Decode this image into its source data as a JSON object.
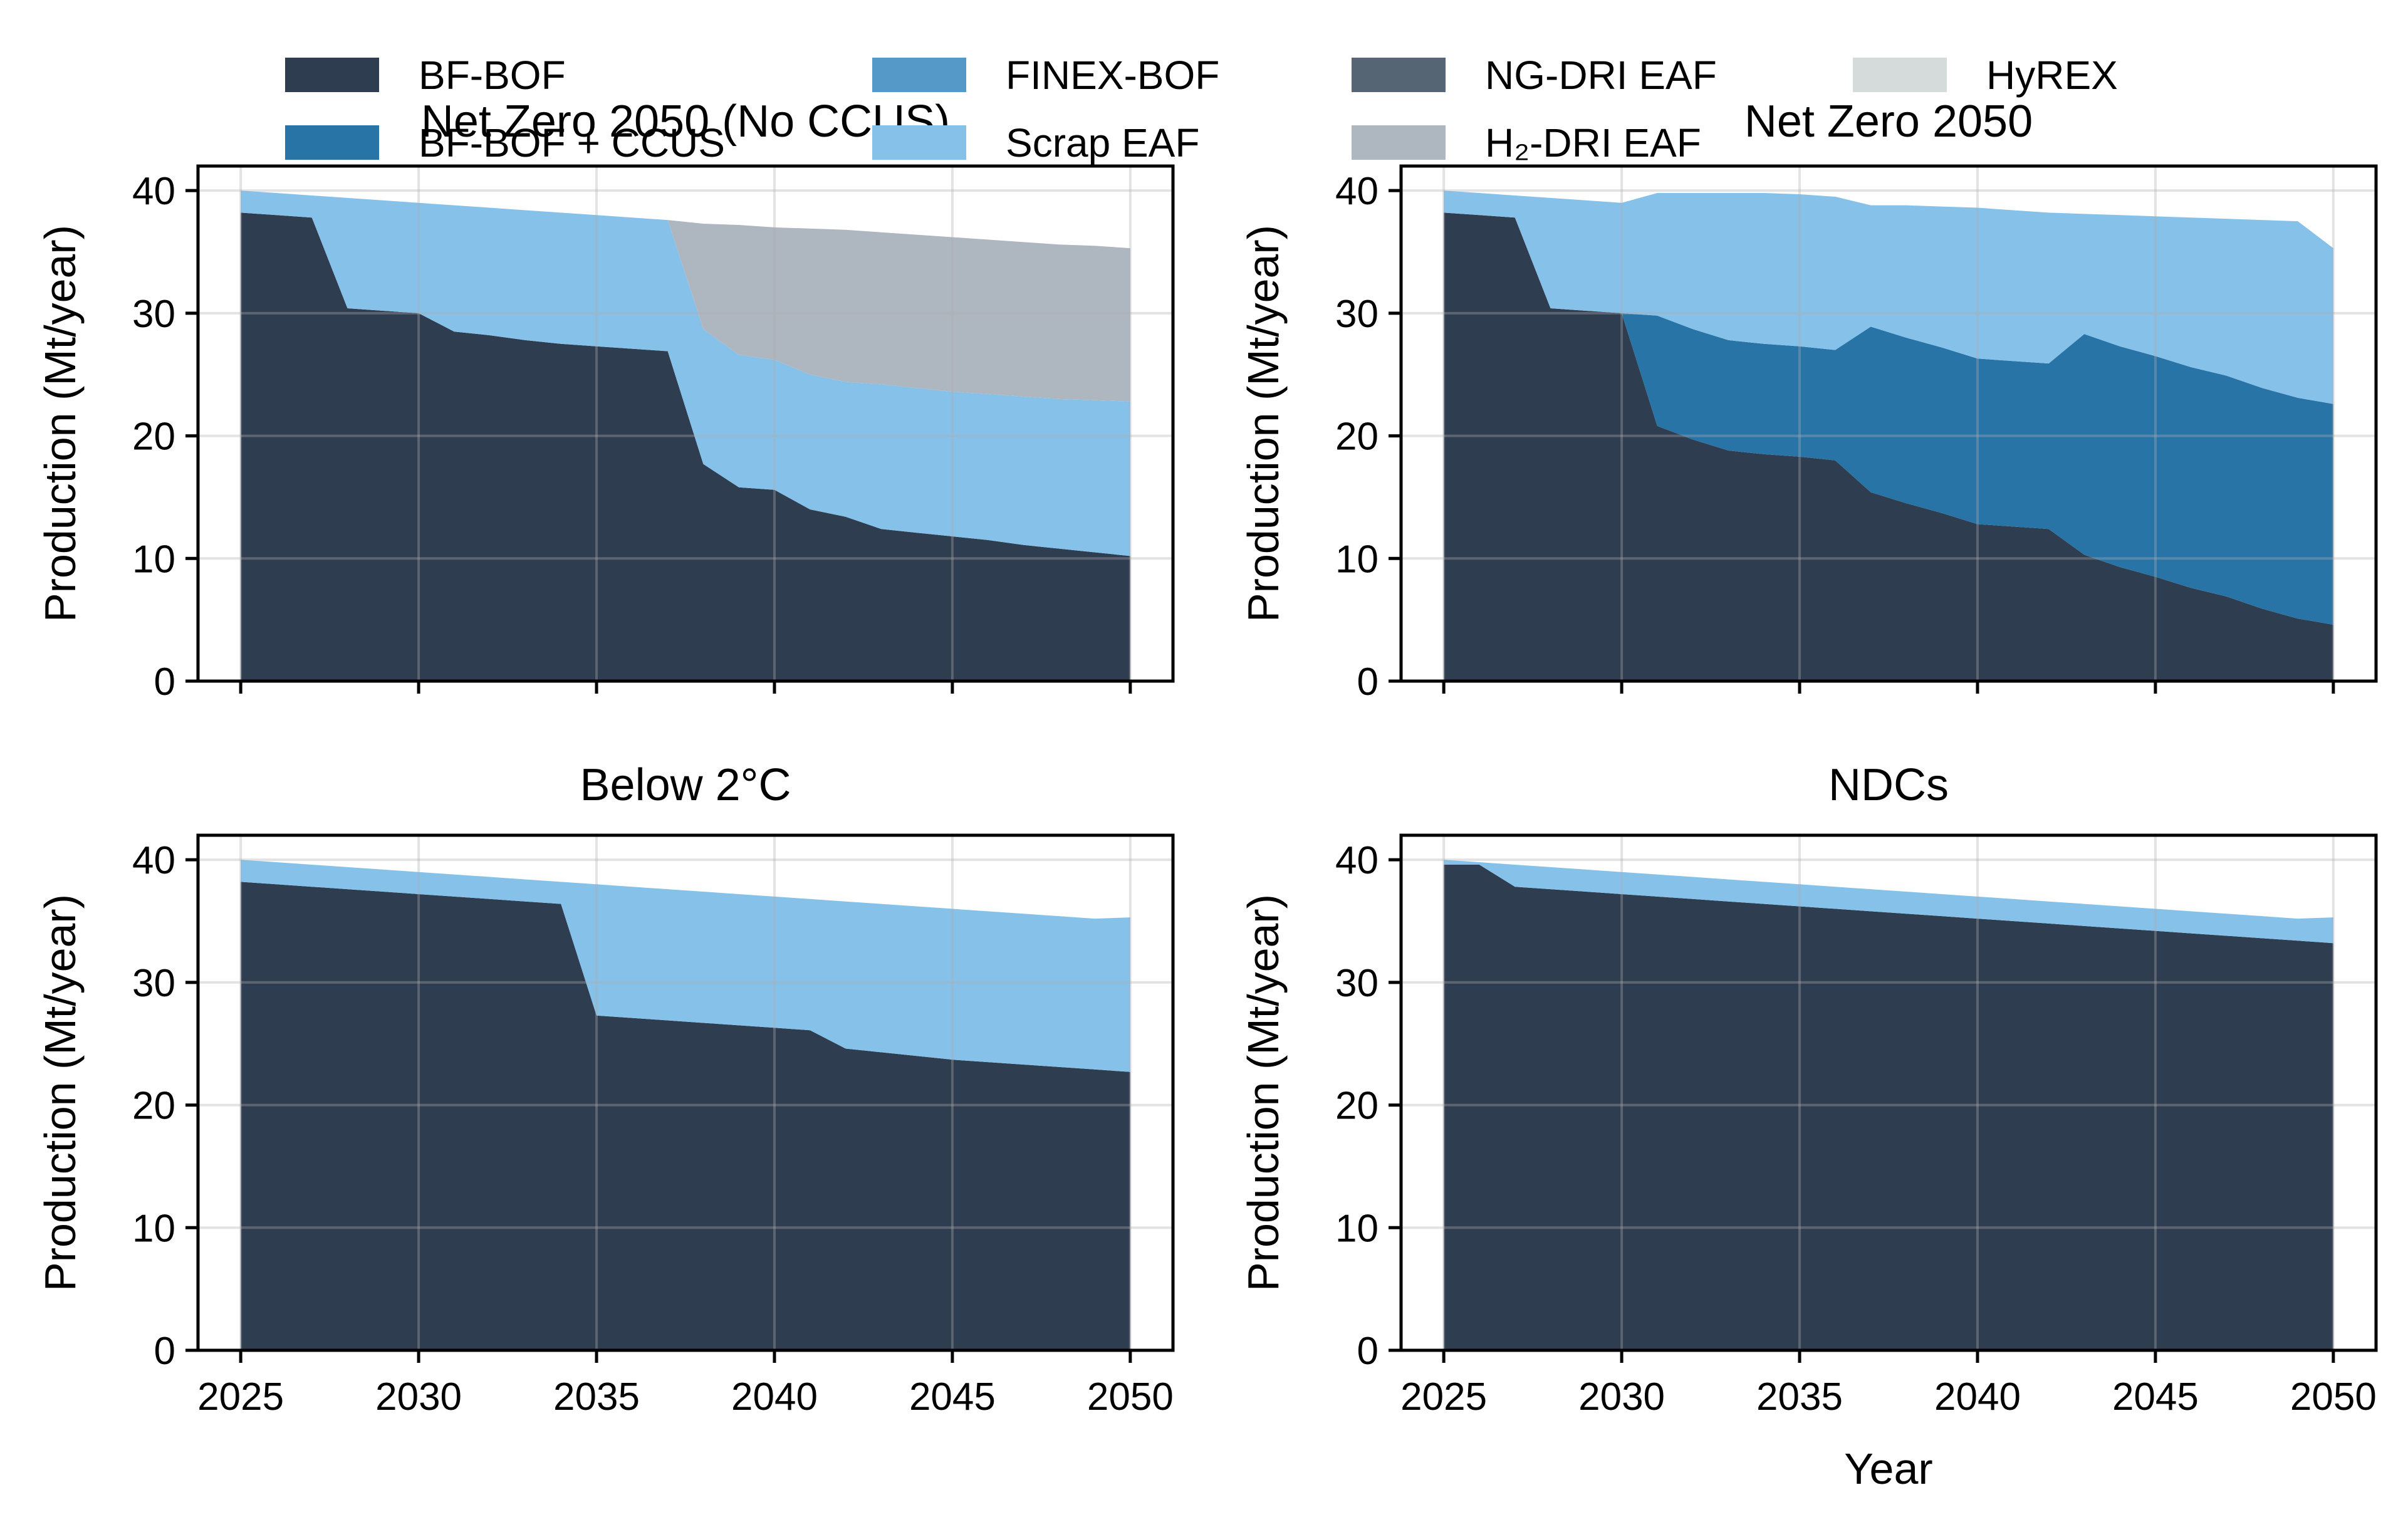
{
  "legend": {
    "items": [
      {
        "label": "BF-BOF",
        "color": "#2e3d4f"
      },
      {
        "label": "BF-BOF + CCUS",
        "color": "#2874a6"
      },
      {
        "label": "FINEX-BOF",
        "color": "#5499c7"
      },
      {
        "label": "Scrap EAF",
        "color": "#85c1e9"
      },
      {
        "label": "NG-DRI EAF",
        "color": "#566573"
      },
      {
        "label": "H₂-DRI EAF",
        "color": "#aeb6bf"
      },
      {
        "label": "HyREX",
        "color": "#d5dbdb"
      }
    ]
  },
  "chart_data": [
    {
      "type": "area",
      "stacked": true,
      "title": "Net Zero 2050 (No CCUS)",
      "xlabel": "",
      "ylabel": "Production (Mt/year)",
      "xlim": [
        2023.8,
        2051.2
      ],
      "ylim": [
        0,
        42
      ],
      "xticks": [
        2025,
        2030,
        2035,
        2040,
        2045,
        2050
      ],
      "yticks": [
        0,
        10,
        20,
        30,
        40
      ],
      "show_xtick_labels": false,
      "grid": true,
      "x": [
        2025,
        2026,
        2027,
        2028,
        2029,
        2030,
        2031,
        2032,
        2033,
        2034,
        2035,
        2036,
        2037,
        2038,
        2039,
        2040,
        2041,
        2042,
        2043,
        2044,
        2045,
        2046,
        2047,
        2048,
        2049,
        2050
      ],
      "series": [
        {
          "name": "BF-BOF",
          "values": [
            38.2,
            38.0,
            37.8,
            30.4,
            30.2,
            30.0,
            28.5,
            28.2,
            27.8,
            27.5,
            27.3,
            27.1,
            26.9,
            17.7,
            15.8,
            15.6,
            14.0,
            13.4,
            12.4,
            12.1,
            11.8,
            11.5,
            11.1,
            10.8,
            10.5,
            10.2
          ]
        },
        {
          "name": "Scrap EAF",
          "values": [
            1.8,
            1.8,
            1.8,
            9.0,
            9.0,
            9.0,
            10.3,
            10.4,
            10.6,
            10.7,
            10.7,
            10.7,
            10.7,
            11.0,
            10.8,
            10.6,
            11.0,
            11.0,
            11.8,
            11.8,
            11.8,
            11.9,
            12.1,
            12.2,
            12.4,
            12.6
          ]
        },
        {
          "name": "H₂-DRI EAF",
          "values": [
            0,
            0,
            0,
            0,
            0,
            0,
            0,
            0,
            0,
            0,
            0,
            0,
            0,
            8.6,
            10.6,
            10.8,
            11.9,
            12.4,
            12.4,
            12.5,
            12.6,
            12.6,
            12.6,
            12.6,
            12.6,
            12.5
          ]
        }
      ]
    },
    {
      "type": "area",
      "stacked": true,
      "title": "Net Zero 2050",
      "xlabel": "",
      "ylabel": "Production (Mt/year)",
      "xlim": [
        2023.8,
        2051.2
      ],
      "ylim": [
        0,
        42
      ],
      "xticks": [
        2025,
        2030,
        2035,
        2040,
        2045,
        2050
      ],
      "yticks": [
        0,
        10,
        20,
        30,
        40
      ],
      "show_xtick_labels": false,
      "grid": true,
      "x": [
        2025,
        2026,
        2027,
        2028,
        2029,
        2030,
        2031,
        2032,
        2033,
        2034,
        2035,
        2036,
        2037,
        2038,
        2039,
        2040,
        2041,
        2042,
        2043,
        2044,
        2045,
        2046,
        2047,
        2048,
        2049,
        2050
      ],
      "series": [
        {
          "name": "BF-BOF",
          "values": [
            38.2,
            38.0,
            37.8,
            30.4,
            30.2,
            30.0,
            20.8,
            19.7,
            18.8,
            18.5,
            18.3,
            18.0,
            15.4,
            14.5,
            13.7,
            12.8,
            12.6,
            12.4,
            10.3,
            9.3,
            8.5,
            7.6,
            6.9,
            5.9,
            5.1,
            4.6
          ]
        },
        {
          "name": "BF-BOF + CCUS",
          "values": [
            0,
            0,
            0,
            0,
            0,
            0,
            9.0,
            9.0,
            9.0,
            9.0,
            9.0,
            9.0,
            13.5,
            13.5,
            13.5,
            13.5,
            13.5,
            13.5,
            18.0,
            18.0,
            18.0,
            18.0,
            18.0,
            18.0,
            18.0,
            18.0
          ]
        },
        {
          "name": "Scrap EAF",
          "values": [
            1.8,
            1.8,
            1.8,
            9.0,
            9.0,
            9.0,
            10.0,
            11.1,
            12.0,
            12.3,
            12.4,
            12.5,
            9.9,
            10.8,
            11.5,
            12.3,
            12.3,
            12.3,
            9.8,
            10.7,
            11.4,
            12.2,
            12.8,
            13.7,
            14.4,
            12.7
          ]
        }
      ]
    },
    {
      "type": "area",
      "stacked": true,
      "title": "Below 2°C",
      "xlabel": "",
      "ylabel": "Production (Mt/year)",
      "xlim": [
        2023.8,
        2051.2
      ],
      "ylim": [
        0,
        42
      ],
      "xticks": [
        2025,
        2030,
        2035,
        2040,
        2045,
        2050
      ],
      "yticks": [
        0,
        10,
        20,
        30,
        40
      ],
      "show_xtick_labels": true,
      "grid": true,
      "x": [
        2025,
        2026,
        2027,
        2028,
        2029,
        2030,
        2031,
        2032,
        2033,
        2034,
        2035,
        2036,
        2037,
        2038,
        2039,
        2040,
        2041,
        2042,
        2043,
        2044,
        2045,
        2046,
        2047,
        2048,
        2049,
        2050
      ],
      "series": [
        {
          "name": "BF-BOF",
          "values": [
            38.2,
            38.0,
            37.8,
            37.6,
            37.4,
            37.2,
            37.0,
            36.8,
            36.6,
            36.4,
            27.3,
            27.1,
            26.9,
            26.7,
            26.5,
            26.3,
            26.1,
            24.6,
            24.3,
            24.0,
            23.7,
            23.5,
            23.3,
            23.1,
            22.9,
            22.7
          ]
        },
        {
          "name": "Scrap EAF",
          "values": [
            1.8,
            1.8,
            1.8,
            1.8,
            1.8,
            1.8,
            1.8,
            1.8,
            1.8,
            1.8,
            10.7,
            10.7,
            10.7,
            10.7,
            10.7,
            10.7,
            10.7,
            12.0,
            12.1,
            12.2,
            12.3,
            12.3,
            12.3,
            12.3,
            12.3,
            12.6
          ]
        }
      ]
    },
    {
      "type": "area",
      "stacked": true,
      "title": "NDCs",
      "xlabel": "Year",
      "ylabel": "Production (Mt/year)",
      "xlim": [
        2023.8,
        2051.2
      ],
      "ylim": [
        0,
        42
      ],
      "xticks": [
        2025,
        2030,
        2035,
        2040,
        2045,
        2050
      ],
      "yticks": [
        0,
        10,
        20,
        30,
        40
      ],
      "show_xtick_labels": true,
      "grid": true,
      "x": [
        2025,
        2026,
        2027,
        2028,
        2029,
        2030,
        2031,
        2032,
        2033,
        2034,
        2035,
        2036,
        2037,
        2038,
        2039,
        2040,
        2041,
        2042,
        2043,
        2044,
        2045,
        2046,
        2047,
        2048,
        2049,
        2050
      ],
      "series": [
        {
          "name": "BF-BOF",
          "values": [
            39.6,
            39.6,
            37.8,
            37.6,
            37.4,
            37.2,
            37.0,
            36.8,
            36.6,
            36.4,
            36.2,
            36.0,
            35.8,
            35.6,
            35.4,
            35.2,
            35.0,
            34.8,
            34.6,
            34.4,
            34.2,
            34.0,
            33.8,
            33.6,
            33.4,
            33.2
          ]
        },
        {
          "name": "Scrap EAF",
          "values": [
            0.4,
            0.2,
            1.8,
            1.8,
            1.8,
            1.8,
            1.8,
            1.8,
            1.8,
            1.8,
            1.8,
            1.8,
            1.8,
            1.8,
            1.8,
            1.8,
            1.8,
            1.8,
            1.8,
            1.8,
            1.8,
            1.8,
            1.8,
            1.8,
            1.8,
            2.1
          ]
        }
      ]
    }
  ]
}
